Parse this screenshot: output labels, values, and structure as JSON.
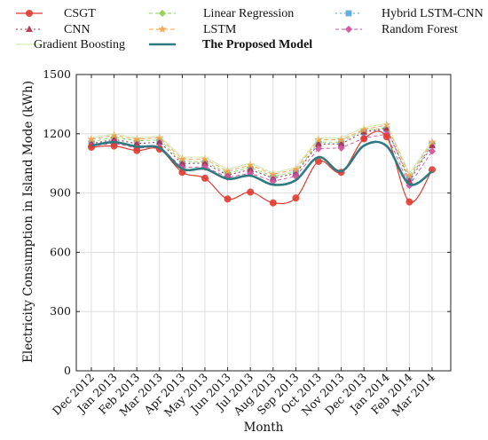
{
  "chart_data": {
    "type": "line",
    "xlabel": "Month",
    "ylabel": "Electricity Consumption in Island Mode (kWh)",
    "ylim": [
      0,
      1500
    ],
    "yticks": [
      0,
      300,
      600,
      900,
      1200,
      1500
    ],
    "grid": true,
    "legend_position": "top",
    "categories": [
      "Dec 2012",
      "Jan 2013",
      "Feb 2013",
      "Mar 2013",
      "Apr 2013",
      "May 2013",
      "Jun 2013",
      "Jul 2013",
      "Aug 2013",
      "Sep 2013",
      "Oct 2013",
      "Nov 2013",
      "Dec 2013",
      "Jan 2014",
      "Feb 2014",
      "Mar 2014"
    ],
    "series": [
      {
        "name": "CSGT",
        "color": "#e03c31",
        "marker": "circle",
        "dash": "solid",
        "smooth": true,
        "values": [
          1132,
          1138,
          1115,
          1122,
          1005,
          975,
          870,
          905,
          850,
          875,
          1060,
          1005,
          1175,
          1185,
          855,
          1018
        ]
      },
      {
        "name": "Linear Regression",
        "color": "#8fd14f",
        "marker": "diamond",
        "dash": "4 3",
        "smooth": false,
        "values": [
          1160,
          1182,
          1165,
          1168,
          1060,
          1060,
          1000,
          1030,
          985,
          1008,
          1158,
          1158,
          1218,
          1230,
          970,
          1150
        ]
      },
      {
        "name": "Hybrid LSTM-CNN",
        "color": "#5aa5e0",
        "marker": "square",
        "dash": "2 3",
        "smooth": false,
        "values": [
          1150,
          1170,
          1150,
          1158,
          1048,
          1050,
          992,
          1018,
          975,
          1000,
          1150,
          1150,
          1208,
          1222,
          975,
          1145
        ]
      },
      {
        "name": "CNN",
        "color": "#b0304a",
        "marker": "triangle",
        "dash": "2 3",
        "smooth": false,
        "values": [
          1150,
          1172,
          1150,
          1158,
          1050,
          1052,
          990,
          1020,
          975,
          1000,
          1148,
          1148,
          1210,
          1228,
          960,
          1140
        ]
      },
      {
        "name": "LSTM",
        "color": "#f5a04a",
        "marker": "star",
        "dash": "5 3",
        "smooth": false,
        "values": [
          1172,
          1192,
          1172,
          1180,
          1072,
          1072,
          1010,
          1042,
          995,
          1020,
          1170,
          1170,
          1222,
          1245,
          988,
          1158
        ]
      },
      {
        "name": "Random Forest",
        "color": "#d0509a",
        "marker": "diamond",
        "dash": "4 3",
        "smooth": false,
        "values": [
          1138,
          1152,
          1128,
          1132,
          1030,
          1032,
          980,
          1000,
          960,
          985,
          1125,
          1128,
          1178,
          1198,
          938,
          1112
        ]
      },
      {
        "name": "Gradient Boosting",
        "color": "#cfe3a8",
        "marker": "none",
        "dash": "solid",
        "smooth": false,
        "values": [
          1180,
          1200,
          1180,
          1188,
          1082,
          1082,
          1020,
          1052,
          1002,
          1030,
          1178,
          1180,
          1232,
          1252,
          1000,
          1165
        ]
      },
      {
        "name": "The Proposed Model",
        "color": "#2f7a80",
        "marker": "none",
        "dash": "solid",
        "smooth": true,
        "bold": true,
        "values": [
          1140,
          1158,
          1135,
          1128,
          1022,
          1022,
          972,
          988,
          942,
          965,
          1082,
          1010,
          1140,
          1138,
          945,
          1010
        ]
      }
    ]
  }
}
